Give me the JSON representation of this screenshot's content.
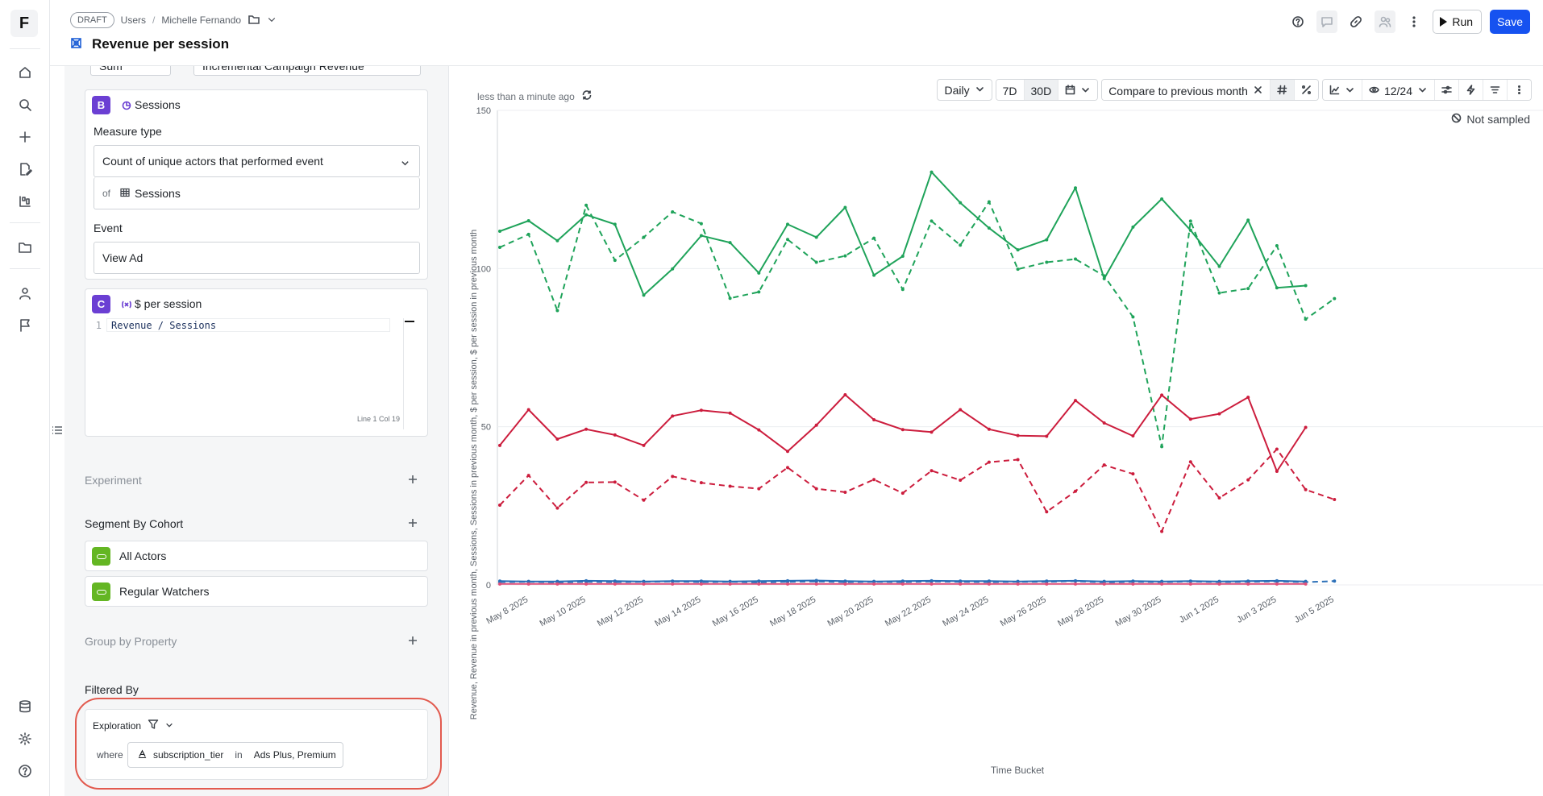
{
  "rail": {
    "logo": "F",
    "icons": [
      "home-icon",
      "search-icon",
      "plus-icon",
      "file-edit-icon",
      "dashboard-icon",
      "folder-icon",
      "user-icon",
      "flag-icon",
      "database-icon",
      "gear-icon",
      "help-icon"
    ]
  },
  "header": {
    "draft": "DRAFT",
    "crumbs": [
      "Users",
      "Michelle Fernando"
    ],
    "title": "Revenue per session",
    "run": "Run",
    "save": "Save"
  },
  "panel": {
    "top_partial": {
      "left": "Sum",
      "right": "Incremental Campaign Revenue"
    },
    "measure_b": {
      "badge": "B",
      "name": "Sessions",
      "measure_type_label": "Measure type",
      "measure_type": "Count of unique actors that performed event",
      "of": "of",
      "of_value": "Sessions",
      "event_label": "Event",
      "event": "View Ad"
    },
    "measure_c": {
      "badge": "C",
      "name": "$ per session",
      "line_no": "1",
      "formula": "Revenue / Sessions",
      "cursor": "Line 1 Col 19"
    },
    "experiment": "Experiment",
    "segment_title": "Segment By Cohort",
    "cohorts": [
      "All Actors",
      "Regular Watchers"
    ],
    "group_by": "Group by Property",
    "filtered_by": "Filtered By",
    "filter": {
      "scope": "Exploration",
      "where": "where",
      "property": "subscription_tier",
      "op": "in",
      "values": "Ads Plus, Premium"
    }
  },
  "chart_toolbar": {
    "updated": "less than a minute ago",
    "granularity": "Daily",
    "range_7d": "7D",
    "range_30d": "30D",
    "compare": "Compare to previous month",
    "visible": "12/24",
    "not_sampled": "Not sampled"
  },
  "colors": {
    "green": "#1fa35a",
    "red": "#cc1d3d",
    "blue": "#2b6fb8",
    "accent": "#1652f0",
    "badge": "#6b3fd3",
    "cohort": "#64b623"
  },
  "chart_data": {
    "type": "line",
    "xlabel": "Time Bucket",
    "ylabel": "Revenue, Revenue in previous month, Sessions, Sessions in previous month, $ per session, $ per session in previous month",
    "ylim": [
      0,
      150
    ],
    "yticks": [
      0,
      50,
      100,
      150
    ],
    "x": [
      "May 7 2025",
      "May 8 2025",
      "May 9 2025",
      "May 10 2025",
      "May 11 2025",
      "May 12 2025",
      "May 13 2025",
      "May 14 2025",
      "May 15 2025",
      "May 16 2025",
      "May 17 2025",
      "May 18 2025",
      "May 19 2025",
      "May 20 2025",
      "May 21 2025",
      "May 22 2025",
      "May 23 2025",
      "May 24 2025",
      "May 25 2025",
      "May 26 2025",
      "May 27 2025",
      "May 28 2025",
      "May 29 2025",
      "May 30 2025",
      "May 31 2025",
      "Jun 1 2025",
      "Jun 2 2025",
      "Jun 3 2025",
      "Jun 4 2025",
      "Jun 5 2025",
      "Jun 6 2025"
    ],
    "xtick_labels": [
      "May 8 2025",
      "May 10 2025",
      "May 12 2025",
      "May 14 2025",
      "May 16 2025",
      "May 18 2025",
      "May 20 2025",
      "May 22 2025",
      "May 24 2025",
      "May 26 2025",
      "May 28 2025",
      "May 30 2025",
      "Jun 1 2025",
      "Jun 3 2025",
      "Jun 5 2025"
    ],
    "grid": true,
    "legend": "none",
    "series": [
      {
        "color": "#1fa35a",
        "dash": false,
        "values": [
          111.8,
          115.1,
          108.8,
          117,
          114,
          91.6,
          99.9,
          110.4,
          108.2,
          98.6,
          114,
          109.9,
          119.3,
          97.9,
          103.9,
          130.5,
          120.8,
          112.8,
          105.9,
          109.1,
          125.5,
          96.8,
          113.1,
          122,
          112.1,
          100.7,
          115.3,
          93.9,
          94.6,
          null,
          null
        ]
      },
      {
        "color": "#1fa35a",
        "dash": true,
        "values": [
          106.7,
          110.8,
          86.7,
          120,
          102.6,
          109.9,
          117.9,
          114.2,
          90.6,
          92.6,
          109.2,
          102,
          104,
          109.6,
          93.4,
          115,
          107.4,
          121.1,
          99.8,
          102,
          103,
          97.7,
          84.7,
          43.7,
          115,
          92.3,
          93.7,
          107.2,
          84,
          90.5,
          null
        ]
      },
      {
        "color": "#cc1d3d",
        "dash": false,
        "values": [
          44.1,
          55.4,
          46.1,
          49.2,
          47.4,
          44.1,
          53.4,
          55.2,
          54.3,
          49,
          42.2,
          50.5,
          60.1,
          52.2,
          49.1,
          48.3,
          55.4,
          49.2,
          47.2,
          47,
          58.3,
          51.2,
          47.1,
          60,
          52.4,
          54.1,
          59.3,
          35.9,
          49.8,
          null,
          null
        ]
      },
      {
        "color": "#cc1d3d",
        "dash": true,
        "values": [
          25.2,
          34.6,
          24.3,
          32.4,
          32.5,
          26.8,
          34.3,
          32.3,
          31.2,
          30.4,
          37.1,
          30.4,
          29.3,
          33.3,
          29,
          36.1,
          33.1,
          38.8,
          39.6,
          23.1,
          29.6,
          37.9,
          35.1,
          16.9,
          38.9,
          27.5,
          33.2,
          42.9,
          30.1,
          27,
          null
        ]
      },
      {
        "color": "#2b6fb8",
        "dash": false,
        "values": [
          1.2,
          1.1,
          1.1,
          1.3,
          1.2,
          1.1,
          1.2,
          1.2,
          1.1,
          1.2,
          1.3,
          1.4,
          1.2,
          1.1,
          1.2,
          1.3,
          1.2,
          1.2,
          1.1,
          1.2,
          1.3,
          1.1,
          1.2,
          1.1,
          1.2,
          1.1,
          1.2,
          1.3,
          1.1,
          null,
          null
        ]
      },
      {
        "color": "#2b6fb8",
        "dash": true,
        "values": [
          0.9,
          1,
          0.8,
          1,
          0.9,
          1,
          1.1,
          0.9,
          1,
          0.8,
          1,
          1.1,
          0.9,
          1,
          0.9,
          1.1,
          1,
          0.9,
          1,
          1,
          1.2,
          0.8,
          1,
          0.9,
          1.1,
          0.9,
          1,
          1.1,
          0.9,
          1.2,
          null
        ]
      },
      {
        "color": "#e0507a",
        "dash": false,
        "values": [
          0.3,
          0.3,
          0.3,
          0.3,
          0.3,
          0.3,
          0.3,
          0.3,
          0.3,
          0.3,
          0.3,
          0.3,
          0.3,
          0.3,
          0.3,
          0.3,
          0.3,
          0.3,
          0.3,
          0.3,
          0.3,
          0.3,
          0.3,
          0.3,
          0.3,
          0.3,
          0.3,
          0.3,
          0.3,
          null,
          null
        ]
      }
    ]
  }
}
